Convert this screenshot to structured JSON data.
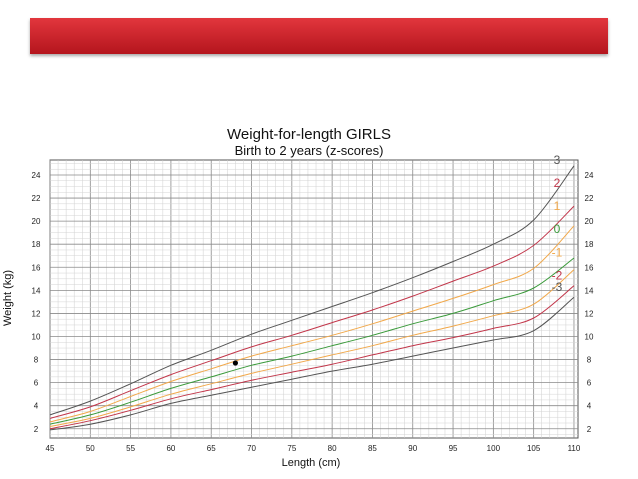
{
  "colors": {
    "banner": "#c8242b",
    "z3": "#545454",
    "z2": "#c2364a",
    "z1": "#f1a84a",
    "z0": "#3a9a3a",
    "zm1": "#f1a84a",
    "zm2": "#c2364a",
    "zm3": "#545454",
    "point": "#000000"
  },
  "chart_data": {
    "type": "line",
    "title": "Weight-for-length GIRLS",
    "subtitle": "Birth to 2 years (z-scores)",
    "xlabel": "Length (cm)",
    "ylabel": "Weight (kg)",
    "xlim": [
      45,
      110
    ],
    "ylim": [
      1.2,
      25.3
    ],
    "x_ticks": [
      45,
      50,
      55,
      60,
      65,
      70,
      75,
      80,
      85,
      90,
      95,
      100,
      105,
      110
    ],
    "y_ticks": [
      2,
      4,
      6,
      8,
      10,
      12,
      14,
      16,
      18,
      20,
      22,
      24
    ],
    "grid": true,
    "x": [
      45,
      50,
      55,
      60,
      65,
      70,
      75,
      80,
      85,
      90,
      95,
      100,
      105,
      110
    ],
    "series": [
      {
        "name": "3",
        "color_key": "z3",
        "values": [
          3.2,
          4.4,
          5.9,
          7.5,
          8.8,
          10.2,
          11.4,
          12.6,
          13.8,
          15.1,
          16.5,
          18.0,
          20.1,
          24.8
        ]
      },
      {
        "name": "2",
        "color_key": "z2",
        "values": [
          2.9,
          3.9,
          5.3,
          6.7,
          7.9,
          9.1,
          10.1,
          11.2,
          12.3,
          13.5,
          14.8,
          16.1,
          17.9,
          21.3
        ]
      },
      {
        "name": "1",
        "color_key": "z1",
        "values": [
          2.6,
          3.5,
          4.8,
          6.1,
          7.2,
          8.3,
          9.2,
          10.1,
          11.1,
          12.2,
          13.3,
          14.5,
          15.9,
          19.6
        ]
      },
      {
        "name": "0",
        "color_key": "z0",
        "values": [
          2.4,
          3.2,
          4.3,
          5.5,
          6.5,
          7.5,
          8.3,
          9.2,
          10.1,
          11.1,
          12.0,
          13.1,
          14.2,
          16.8
        ]
      },
      {
        "name": "-1",
        "color_key": "zm1",
        "values": [
          2.2,
          2.9,
          3.9,
          5.0,
          5.9,
          6.8,
          7.6,
          8.4,
          9.2,
          10.1,
          10.9,
          11.8,
          12.8,
          15.8
        ]
      },
      {
        "name": "-2",
        "color_key": "zm2",
        "values": [
          2.0,
          2.7,
          3.6,
          4.6,
          5.4,
          6.2,
          6.9,
          7.6,
          8.4,
          9.2,
          9.9,
          10.7,
          11.6,
          14.4
        ]
      },
      {
        "name": "-3",
        "color_key": "zm3",
        "values": [
          1.9,
          2.4,
          3.2,
          4.2,
          4.9,
          5.6,
          6.3,
          7.0,
          7.6,
          8.3,
          9.0,
          9.7,
          10.5,
          13.4
        ]
      }
    ],
    "points": [
      {
        "x": 68,
        "y": 7.7
      }
    ],
    "z_labels": [
      {
        "text": "3",
        "color_key": "z3",
        "y": 25.3
      },
      {
        "text": "2",
        "color_key": "z2",
        "y": 23.3
      },
      {
        "text": "1",
        "color_key": "z1",
        "y": 21.3
      },
      {
        "text": "0",
        "color_key": "z0",
        "y": 19.3
      },
      {
        "text": "-1",
        "color_key": "zm1",
        "y": 17.3
      },
      {
        "text": "-2",
        "color_key": "zm2",
        "y": 15.3
      },
      {
        "text": "-3",
        "color_key": "zm3",
        "y": 14.3
      }
    ]
  }
}
